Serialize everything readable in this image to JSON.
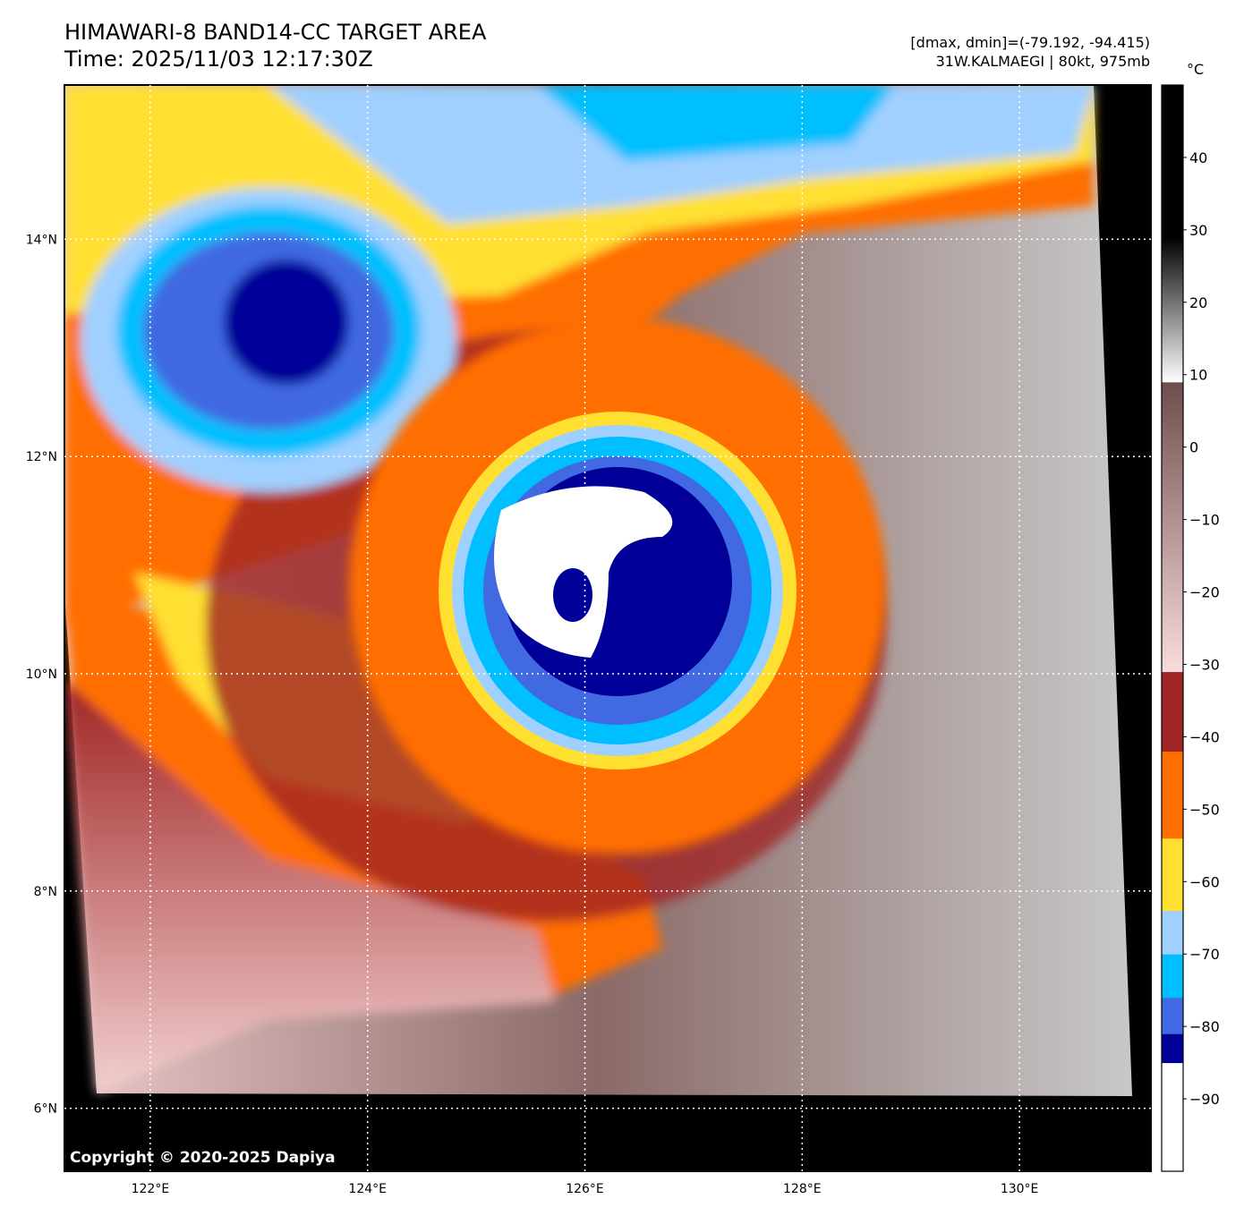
{
  "header": {
    "title": "HIMAWARI-8 BAND14-CC TARGET AREA",
    "time": "Time: 2025/11/03 12:17:30Z",
    "dmax_dmin": "[dmax, dmin]=(-79.192, -94.415)",
    "storm": "31W.KALMAEGI | 80kt, 975mb"
  },
  "map": {
    "lon_range": [
      121.21,
      131.21
    ],
    "lat_range": [
      5.42,
      15.42
    ],
    "lat_ticks": [
      {
        "value": 14,
        "label": "14°N"
      },
      {
        "value": 12,
        "label": "12°N"
      },
      {
        "value": 10,
        "label": "10°N"
      },
      {
        "value": 8,
        "label": "8°N"
      },
      {
        "value": 6,
        "label": "6°N"
      }
    ],
    "lon_ticks": [
      {
        "value": 122,
        "label": "122°E"
      },
      {
        "value": 124,
        "label": "124°E"
      },
      {
        "value": 126,
        "label": "126°E"
      },
      {
        "value": 128,
        "label": "128°E"
      },
      {
        "value": 130,
        "label": "130°E"
      }
    ],
    "storm_center": [
      125.4,
      10.8
    ],
    "copyright": "Copyright © 2020-2025 Dapiya"
  },
  "colorbar": {
    "unit": "°C",
    "range": [
      -100,
      50
    ],
    "ticks": [
      "40",
      "30",
      "20",
      "10",
      "0",
      "−10",
      "−20",
      "−30",
      "−40",
      "−50",
      "−60",
      "−70",
      "−80",
      "−90"
    ],
    "tick_values": [
      40,
      30,
      20,
      10,
      0,
      -10,
      -20,
      -30,
      -40,
      -50,
      -60,
      -70,
      -80,
      -90
    ],
    "segments": [
      {
        "from": -100,
        "to": -85,
        "color": "#ffffff"
      },
      {
        "from": -85,
        "to": -81,
        "color": "#000099"
      },
      {
        "from": -81,
        "to": -76,
        "color": "#4169e1"
      },
      {
        "from": -76,
        "to": -70,
        "color": "#00bfff"
      },
      {
        "from": -70,
        "to": -64,
        "color": "#a0d0ff"
      },
      {
        "from": -64,
        "to": -54,
        "color": "#ffe030"
      },
      {
        "from": -54,
        "to": -42,
        "color": "#ff6e00"
      },
      {
        "from": -42,
        "to": -31,
        "color": "#a02424"
      },
      {
        "from": -31,
        "to": 9,
        "gradient": [
          "#fadcdc",
          "#6e4e4c"
        ]
      },
      {
        "from": 9,
        "to": 29,
        "gradient": [
          "#ffffff",
          "#000000"
        ]
      },
      {
        "from": 29,
        "to": 50,
        "color": "#000000"
      }
    ]
  }
}
